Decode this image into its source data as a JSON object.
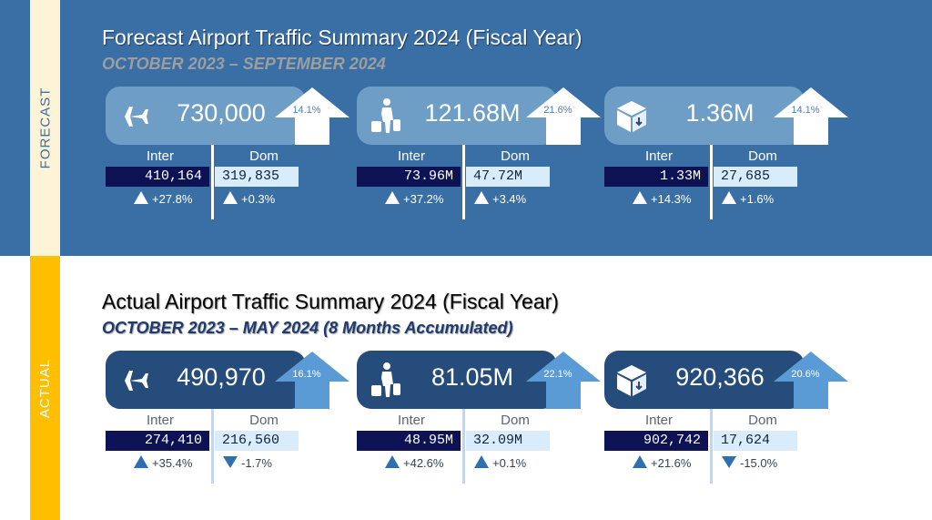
{
  "forecast": {
    "tab": "FORECAST",
    "title": "Forecast Airport Traffic Summary 2024 (Fiscal Year)",
    "subtitle": "OCTOBER 2023 – SEPTEMBER 2024",
    "cards": [
      {
        "icon": "airplane-icon",
        "total": "730,000",
        "pct": "14.1%",
        "inter_label": "Inter",
        "dom_label": "Dom",
        "inter": "410,164",
        "dom": "319,835",
        "inter_change": "+27.8%",
        "dom_change": "+0.3%",
        "inter_dir": "up",
        "dom_dir": "up"
      },
      {
        "icon": "passenger-icon",
        "total": "121.68M",
        "pct": "21.6%",
        "inter_label": "Inter",
        "dom_label": "Dom",
        "inter": "73.96M",
        "dom": "47.72M",
        "inter_change": "+37.2%",
        "dom_change": "+3.4%",
        "inter_dir": "up",
        "dom_dir": "up"
      },
      {
        "icon": "cargo-box-icon",
        "total": "1.36M",
        "pct": "14.1%",
        "inter_label": "Inter",
        "dom_label": "Dom",
        "inter": "1.33M",
        "dom": "27,685",
        "inter_change": "+14.3%",
        "dom_change": "+1.6%",
        "inter_dir": "up",
        "dom_dir": "up"
      }
    ]
  },
  "actual": {
    "tab": "ACTUAL",
    "title": "Actual Airport Traffic Summary 2024 (Fiscal Year)",
    "subtitle": "OCTOBER 2023 – MAY 2024 (8 Months Accumulated)",
    "cards": [
      {
        "icon": "airplane-icon",
        "total": "490,970",
        "pct": "16.1%",
        "inter_label": "Inter",
        "dom_label": "Dom",
        "inter": "274,410",
        "dom": "216,560",
        "inter_change": "+35.4%",
        "dom_change": "-1.7%",
        "inter_dir": "up",
        "dom_dir": "down"
      },
      {
        "icon": "passenger-icon",
        "total": "81.05M",
        "pct": "22.1%",
        "inter_label": "Inter",
        "dom_label": "Dom",
        "inter": "48.95M",
        "dom": "32.09M",
        "inter_change": "+42.6%",
        "dom_change": "+0.1%",
        "inter_dir": "up",
        "dom_dir": "up"
      },
      {
        "icon": "cargo-box-icon",
        "total": "920,366",
        "pct": "20.6%",
        "inter_label": "Inter",
        "dom_label": "Dom",
        "inter": "902,742",
        "dom": "17,624",
        "inter_change": "+21.6%",
        "dom_change": "-15.0%",
        "inter_dir": "up",
        "dom_dir": "down"
      }
    ]
  },
  "colors": {
    "forecast_bg": "#3a6fa6",
    "forecast_pill": "#6e9ec5",
    "actual_pill": "#264c7b",
    "actual_arrow": "#5b9bd5",
    "inter_box": "#0c1254",
    "dom_box": "#d8ecfb",
    "actual_tab": "#fdbf00"
  },
  "chart_data": {
    "type": "table",
    "columns": [
      "Inter",
      "Dom"
    ],
    "sections": [
      {
        "title": "Forecast Airport Traffic Summary 2024 (Fiscal Year)",
        "period": "OCTOBER 2023 – SEPTEMBER 2024",
        "metrics": [
          {
            "metric": "flights",
            "total": 730000,
            "growth_pct": 14.1,
            "inter": 410164,
            "dom": 319835,
            "inter_change_pct": 27.8,
            "dom_change_pct": 0.3
          },
          {
            "metric": "passengers",
            "total": 121680000,
            "growth_pct": 21.6,
            "inter": 73960000,
            "dom": 47720000,
            "inter_change_pct": 37.2,
            "dom_change_pct": 3.4
          },
          {
            "metric": "cargo",
            "total": 1360000,
            "growth_pct": 14.1,
            "inter": 1330000,
            "dom": 27685,
            "inter_change_pct": 14.3,
            "dom_change_pct": 1.6
          }
        ]
      },
      {
        "title": "Actual Airport Traffic Summary 2024 (Fiscal Year)",
        "period": "OCTOBER 2023 – MAY 2024 (8 Months Accumulated)",
        "metrics": [
          {
            "metric": "flights",
            "total": 490970,
            "growth_pct": 16.1,
            "inter": 274410,
            "dom": 216560,
            "inter_change_pct": 35.4,
            "dom_change_pct": -1.7
          },
          {
            "metric": "passengers",
            "total": 81050000,
            "growth_pct": 22.1,
            "inter": 48950000,
            "dom": 32090000,
            "inter_change_pct": 42.6,
            "dom_change_pct": 0.1
          },
          {
            "metric": "cargo",
            "total": 920366,
            "growth_pct": 20.6,
            "inter": 902742,
            "dom": 17624,
            "inter_change_pct": 21.6,
            "dom_change_pct": -15.0
          }
        ]
      }
    ]
  }
}
